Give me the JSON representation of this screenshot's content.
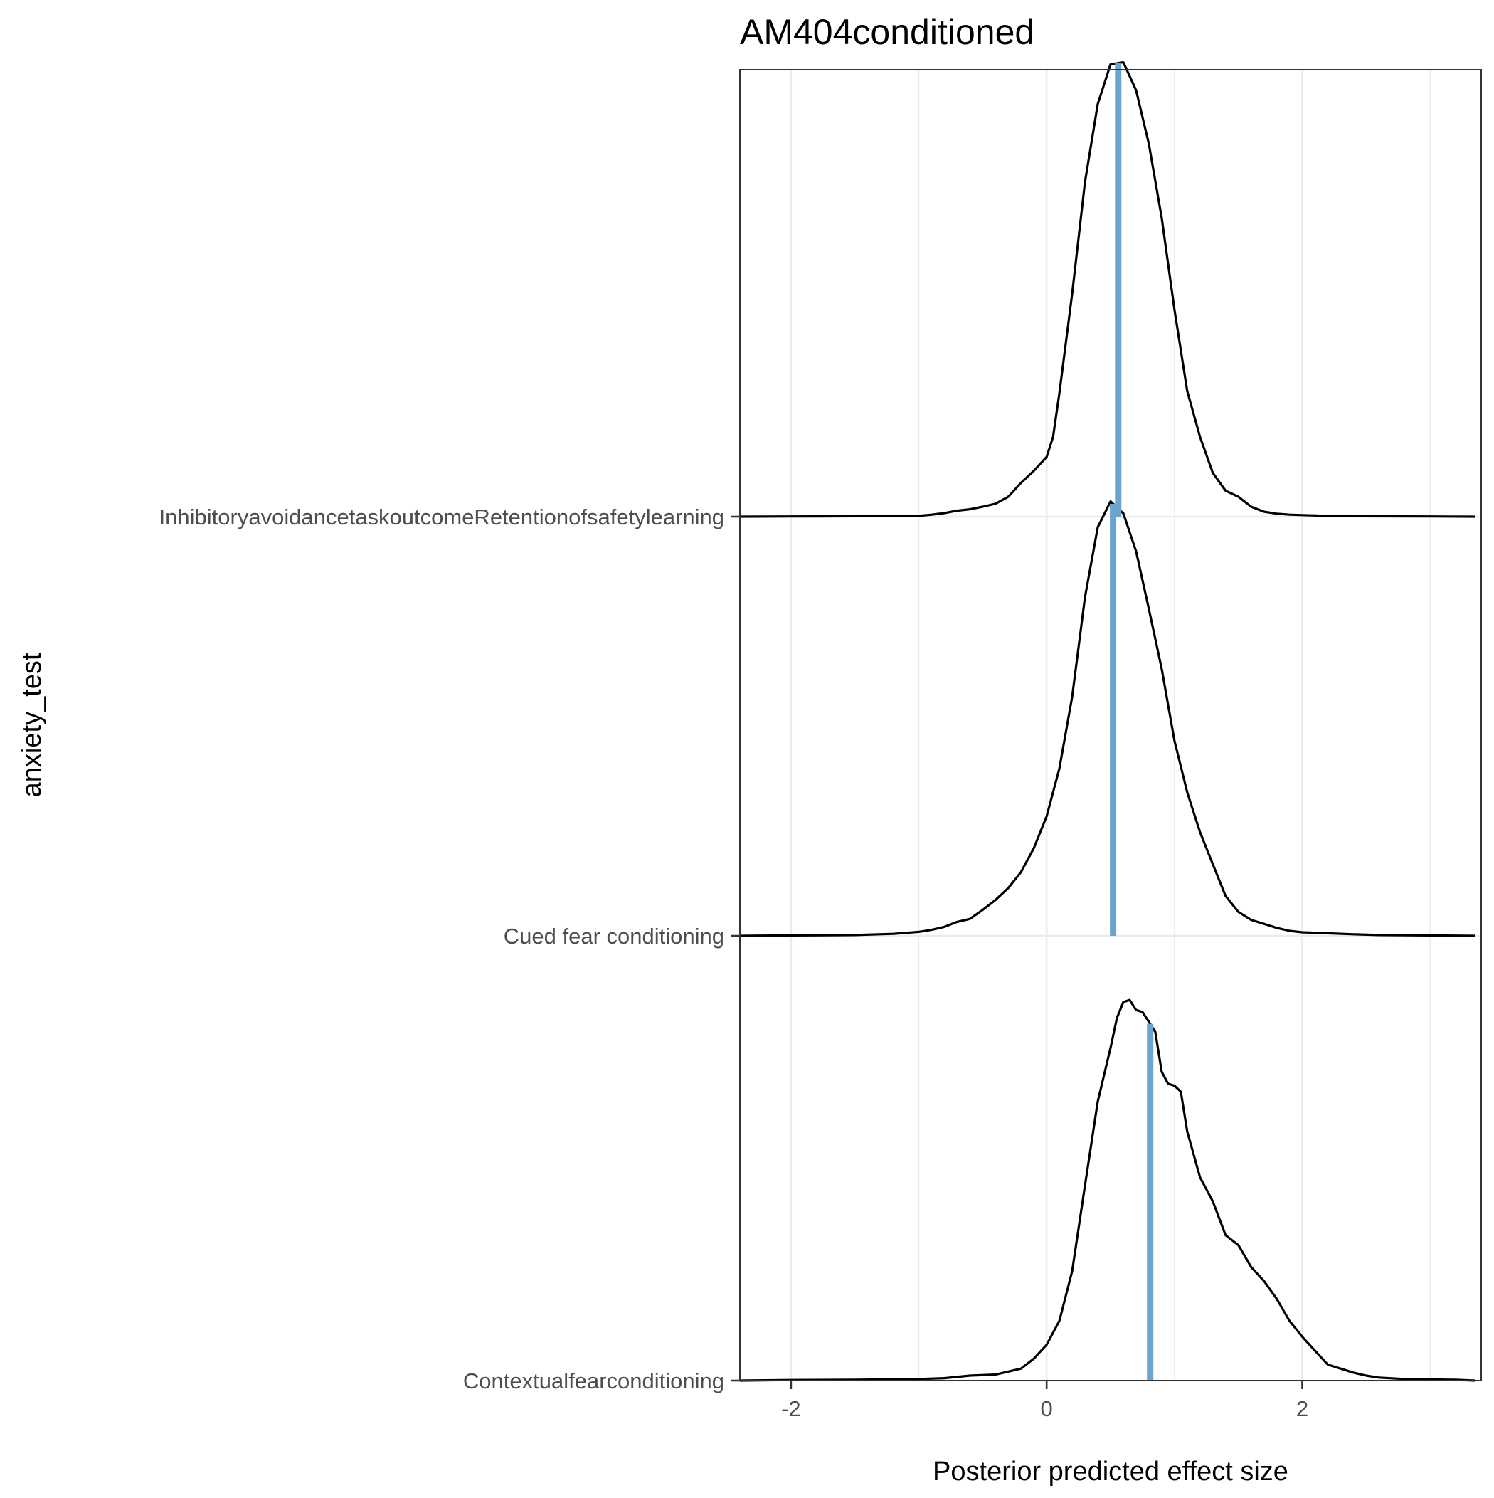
{
  "chart_data": {
    "type": "density_ridges",
    "title": "AM404conditioned",
    "xlabel": "Posterior predicted effect size",
    "ylabel": "anxiety_test",
    "xlim": [
      -2.4,
      3.4
    ],
    "x_ticks": [
      -2,
      0,
      2
    ],
    "x_tick_labels": [
      "-2",
      "0",
      "2"
    ],
    "grid": true,
    "categories": [
      "Contextualfearconditioning",
      "Cued fear conditioning",
      "InhibitoryavoidancetaskoutcomeRetentionofsafetylearning"
    ],
    "series": [
      {
        "category": "Contextualfearconditioning",
        "median": 0.81,
        "density": [
          [
            -2.4,
            0
          ],
          [
            -2.0,
            0.003
          ],
          [
            -1.5,
            0.004
          ],
          [
            -1.0,
            0.008
          ],
          [
            -0.8,
            0.012
          ],
          [
            -0.6,
            0.025
          ],
          [
            -0.4,
            0.03
          ],
          [
            -0.2,
            0.06
          ],
          [
            -0.1,
            0.11
          ],
          [
            0.0,
            0.18
          ],
          [
            0.1,
            0.3
          ],
          [
            0.2,
            0.55
          ],
          [
            0.3,
            0.98
          ],
          [
            0.4,
            1.4
          ],
          [
            0.5,
            1.67
          ],
          [
            0.55,
            1.82
          ],
          [
            0.6,
            1.9
          ],
          [
            0.65,
            1.91
          ],
          [
            0.7,
            1.86
          ],
          [
            0.75,
            1.85
          ],
          [
            0.8,
            1.8
          ],
          [
            0.85,
            1.75
          ],
          [
            0.9,
            1.55
          ],
          [
            0.95,
            1.49
          ],
          [
            1.0,
            1.48
          ],
          [
            1.05,
            1.45
          ],
          [
            1.1,
            1.25
          ],
          [
            1.2,
            1.02
          ],
          [
            1.3,
            0.9
          ],
          [
            1.4,
            0.73
          ],
          [
            1.5,
            0.68
          ],
          [
            1.6,
            0.57
          ],
          [
            1.7,
            0.5
          ],
          [
            1.8,
            0.41
          ],
          [
            1.9,
            0.3
          ],
          [
            2.0,
            0.22
          ],
          [
            2.1,
            0.15
          ],
          [
            2.2,
            0.08
          ],
          [
            2.3,
            0.06
          ],
          [
            2.4,
            0.04
          ],
          [
            2.5,
            0.025
          ],
          [
            2.6,
            0.015
          ],
          [
            2.8,
            0.008
          ],
          [
            3.0,
            0.006
          ],
          [
            3.2,
            0.004
          ],
          [
            3.35,
            0
          ]
        ]
      },
      {
        "category": "Cued fear conditioning",
        "median": 0.52,
        "density": [
          [
            -2.4,
            0
          ],
          [
            -2.0,
            0.002
          ],
          [
            -1.5,
            0.004
          ],
          [
            -1.2,
            0.01
          ],
          [
            -1.0,
            0.02
          ],
          [
            -0.9,
            0.03
          ],
          [
            -0.8,
            0.045
          ],
          [
            -0.7,
            0.07
          ],
          [
            -0.6,
            0.085
          ],
          [
            -0.5,
            0.13
          ],
          [
            -0.4,
            0.18
          ],
          [
            -0.3,
            0.24
          ],
          [
            -0.2,
            0.32
          ],
          [
            -0.1,
            0.44
          ],
          [
            0.0,
            0.6
          ],
          [
            0.1,
            0.84
          ],
          [
            0.2,
            1.2
          ],
          [
            0.3,
            1.7
          ],
          [
            0.4,
            2.05
          ],
          [
            0.5,
            2.18
          ],
          [
            0.6,
            2.12
          ],
          [
            0.7,
            1.93
          ],
          [
            0.8,
            1.64
          ],
          [
            0.9,
            1.34
          ],
          [
            1.0,
            0.98
          ],
          [
            1.1,
            0.72
          ],
          [
            1.2,
            0.52
          ],
          [
            1.3,
            0.36
          ],
          [
            1.4,
            0.2
          ],
          [
            1.5,
            0.12
          ],
          [
            1.6,
            0.08
          ],
          [
            1.7,
            0.06
          ],
          [
            1.8,
            0.04
          ],
          [
            1.9,
            0.025
          ],
          [
            2.0,
            0.018
          ],
          [
            2.2,
            0.013
          ],
          [
            2.4,
            0.008
          ],
          [
            2.6,
            0.004
          ],
          [
            3.0,
            0.002
          ],
          [
            3.35,
            0
          ]
        ]
      },
      {
        "category": "InhibitoryavoidancetaskoutcomeRetentionofsafetylearning",
        "median": 0.56,
        "density": [
          [
            -2.4,
            0
          ],
          [
            -2.0,
            0.001
          ],
          [
            -1.5,
            0.002
          ],
          [
            -1.0,
            0.004
          ],
          [
            -0.9,
            0.01
          ],
          [
            -0.8,
            0.018
          ],
          [
            -0.7,
            0.03
          ],
          [
            -0.6,
            0.037
          ],
          [
            -0.5,
            0.05
          ],
          [
            -0.4,
            0.065
          ],
          [
            -0.3,
            0.1
          ],
          [
            -0.2,
            0.17
          ],
          [
            -0.1,
            0.23
          ],
          [
            0.0,
            0.3
          ],
          [
            0.05,
            0.4
          ],
          [
            0.1,
            0.62
          ],
          [
            0.2,
            1.12
          ],
          [
            0.3,
            1.68
          ],
          [
            0.4,
            2.07
          ],
          [
            0.5,
            2.27
          ],
          [
            0.6,
            2.28
          ],
          [
            0.7,
            2.14
          ],
          [
            0.8,
            1.87
          ],
          [
            0.9,
            1.5
          ],
          [
            1.0,
            1.04
          ],
          [
            1.1,
            0.63
          ],
          [
            1.2,
            0.4
          ],
          [
            1.3,
            0.22
          ],
          [
            1.4,
            0.13
          ],
          [
            1.5,
            0.1
          ],
          [
            1.6,
            0.05
          ],
          [
            1.7,
            0.025
          ],
          [
            1.8,
            0.015
          ],
          [
            1.9,
            0.01
          ],
          [
            2.0,
            0.008
          ],
          [
            2.2,
            0.004
          ],
          [
            2.4,
            0.002
          ],
          [
            3.0,
            0.001
          ],
          [
            3.35,
            0
          ]
        ]
      }
    ]
  }
}
